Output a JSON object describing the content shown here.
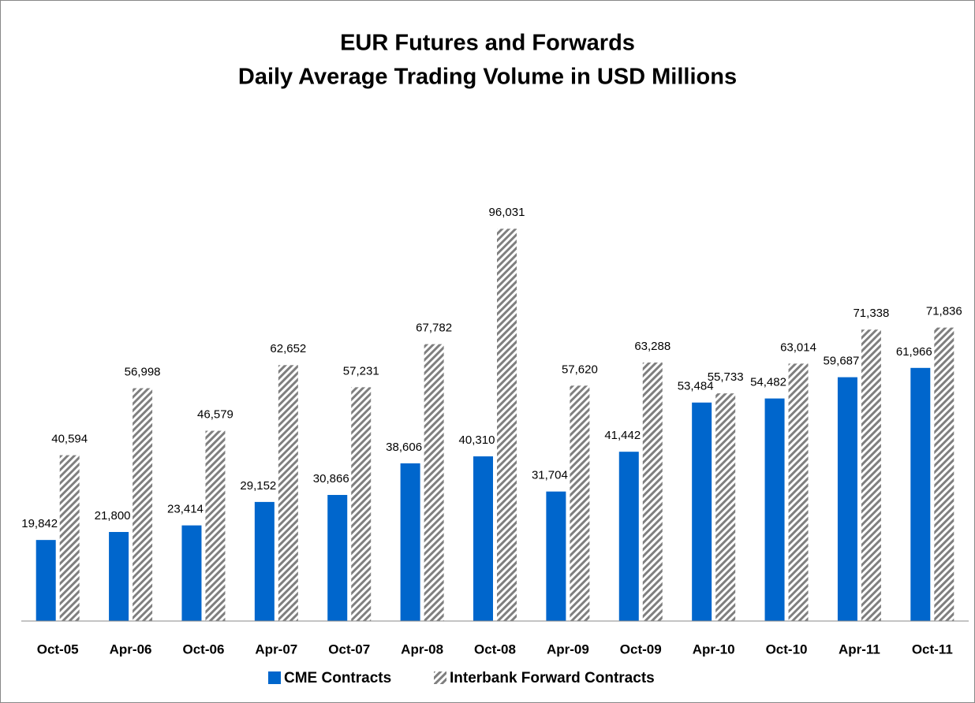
{
  "chart_data": {
    "type": "bar",
    "title": "EUR Futures and Forwards",
    "subtitle": "Daily Average Trading Volume in USD Millions",
    "categories": [
      "Oct-05",
      "Apr-06",
      "Oct-06",
      "Apr-07",
      "Oct-07",
      "Apr-08",
      "Oct-08",
      "Apr-09",
      "Oct-09",
      "Apr-10",
      "Oct-10",
      "Apr-11",
      "Oct-11"
    ],
    "series": [
      {
        "name": "CME Contracts",
        "color": "#0066cc",
        "hatch": false,
        "values": [
          19842,
          21800,
          23414,
          29152,
          30866,
          38606,
          40310,
          31704,
          41442,
          53484,
          54482,
          59687,
          61966
        ],
        "value_labels": [
          "19,842",
          "21,800",
          "23,414",
          "29,152",
          "30,866",
          "38,606",
          "40,310",
          "31,704",
          "41,442",
          "53,484",
          "54,482",
          "59,687",
          "61,966"
        ]
      },
      {
        "name": "Interbank Forward Contracts",
        "color": "#7f7f7f",
        "hatch": true,
        "values": [
          40594,
          56998,
          46579,
          62652,
          57231,
          67782,
          96031,
          57620,
          63288,
          55733,
          63014,
          71338,
          71836
        ],
        "value_labels": [
          "40,594",
          "56,998",
          "46,579",
          "62,652",
          "57,231",
          "67,782",
          "96,031",
          "57,620",
          "63,288",
          "55,733",
          "63,014",
          "71,338",
          "71,836"
        ]
      }
    ],
    "ylim": [
      0,
      120000
    ],
    "legend": "bottom"
  }
}
